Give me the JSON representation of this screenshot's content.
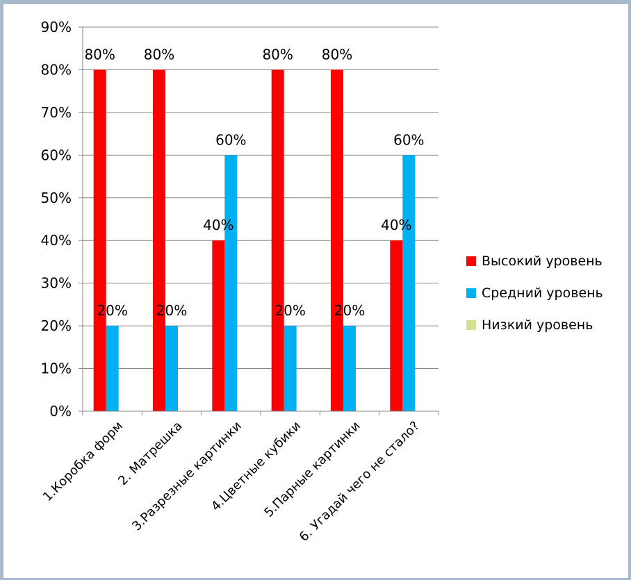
{
  "chart_data": {
    "type": "bar",
    "categories": [
      "1.Коробка форм",
      "2. Матрешка",
      "3.Разрезные картинки",
      "4.Цветные кубики",
      "5.Парные картинки",
      "6. Угадай чего не стало?"
    ],
    "series": [
      {
        "name": "Высокий уровень",
        "color": "#ff0000",
        "values": [
          80,
          80,
          40,
          80,
          80,
          40
        ]
      },
      {
        "name": "Средний уровень",
        "color": "#00b0f0",
        "values": [
          20,
          20,
          60,
          20,
          20,
          60
        ]
      },
      {
        "name": "Низкий уровень",
        "color": "#d7e08e",
        "values": [
          0,
          0,
          0,
          0,
          0,
          0
        ]
      }
    ],
    "data_labels": [
      [
        "80%",
        "80%",
        "40%",
        "80%",
        "80%",
        "40%"
      ],
      [
        "20%",
        "20%",
        "60%",
        "20%",
        "20%",
        "60%"
      ]
    ],
    "y_ticks": [
      "0%",
      "10%",
      "20%",
      "30%",
      "40%",
      "50%",
      "60%",
      "70%",
      "80%",
      "90%"
    ],
    "ylim": [
      0,
      90
    ],
    "grid": true,
    "legend": "right",
    "title": "",
    "xlabel": "",
    "ylabel": ""
  }
}
